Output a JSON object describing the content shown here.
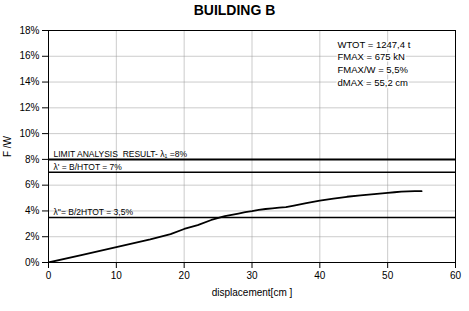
{
  "chart_data": {
    "type": "line",
    "title": "BUILDING B",
    "xlabel": "displacement[cm ]",
    "ylabel": "F /W",
    "xlim": [
      0,
      60
    ],
    "xticks": [
      0,
      10,
      20,
      30,
      40,
      50,
      60
    ],
    "ylim": [
      0,
      0.18
    ],
    "yticks": [
      {
        "value": 0.0,
        "label": "0%"
      },
      {
        "value": 0.02,
        "label": "2%"
      },
      {
        "value": 0.04,
        "label": "4%"
      },
      {
        "value": 0.06,
        "label": "6%"
      },
      {
        "value": 0.08,
        "label": "8%"
      },
      {
        "value": 0.1,
        "label": "10%"
      },
      {
        "value": 0.12,
        "label": "12%"
      },
      {
        "value": 0.14,
        "label": "14%"
      },
      {
        "value": 0.16,
        "label": "16%"
      },
      {
        "value": 0.18,
        "label": "18%"
      }
    ],
    "grid": true,
    "series": [
      {
        "type": "line",
        "color": "#000000",
        "x": [
          0,
          5,
          10,
          15,
          18,
          20,
          22,
          24,
          26,
          27,
          28,
          29,
          30,
          31,
          32,
          33,
          34,
          35,
          36,
          38,
          40,
          42,
          44,
          46,
          48,
          50,
          51,
          52,
          53,
          54,
          55
        ],
        "values": [
          0,
          0.006,
          0.012,
          0.018,
          0.022,
          0.026,
          0.029,
          0.033,
          0.036,
          0.037,
          0.038,
          0.039,
          0.0398,
          0.0408,
          0.0415,
          0.042,
          0.0425,
          0.043,
          0.044,
          0.046,
          0.048,
          0.0495,
          0.051,
          0.052,
          0.053,
          0.054,
          0.0545,
          0.055,
          0.0552,
          0.0553,
          0.0553
        ]
      },
      {
        "type": "scatter",
        "marker": "+",
        "color": "#000000",
        "x": [
          24,
          26,
          27,
          28,
          29,
          30,
          31,
          32,
          33,
          34,
          35,
          36,
          38,
          40,
          42,
          44,
          46,
          48,
          50,
          51,
          52,
          53,
          54,
          55
        ],
        "values": [
          0.033,
          0.036,
          0.037,
          0.038,
          0.039,
          0.0398,
          0.0408,
          0.0415,
          0.042,
          0.0425,
          0.043,
          0.044,
          0.046,
          0.048,
          0.0495,
          0.051,
          0.052,
          0.053,
          0.054,
          0.0545,
          0.055,
          0.0552,
          0.0553,
          0.0553
        ]
      }
    ],
    "annotations": [
      {
        "y": 0.08,
        "text": "LIMIT ANALYSIS  RESULT- λ₁ =8%"
      },
      {
        "y": 0.07,
        "text": "λ' = B/HTOT = 7%"
      },
      {
        "y": 0.035,
        "text": "λ''= B/2HTOT = 3,5%"
      },
      {
        "text": "WTOT = 1247,4 t"
      },
      {
        "text": "FMAX = 675 kN"
      },
      {
        "text": "FMAX/W = 5,5%"
      },
      {
        "text": "dMAX = 55,2 cm"
      }
    ]
  }
}
